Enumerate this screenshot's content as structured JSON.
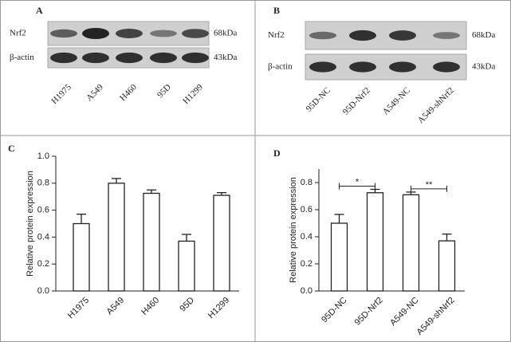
{
  "panels": [
    "A",
    "B",
    "C",
    "D"
  ],
  "blots": [
    {
      "proteins": [
        "Nrf2",
        "β-actin"
      ],
      "sizes": [
        "68kDa",
        "43kDa"
      ],
      "lanes": [
        "H1975",
        "A549",
        "H460",
        "95D",
        "H1299"
      ]
    },
    {
      "proteins": [
        "Nrf2",
        "β-actin"
      ],
      "sizes": [
        "68kDa",
        "43kDa"
      ],
      "lanes": [
        "95D-NC",
        "95D-Nrf2",
        "A549-NC",
        "A549-shNrf2"
      ]
    }
  ],
  "chart_data": [
    {
      "type": "bar",
      "y_label": "Relative protein expression",
      "categories": [
        "H1975",
        "A549",
        "H460",
        "95D",
        "H1299"
      ],
      "values": [
        0.5,
        0.8,
        0.725,
        0.37,
        0.71
      ],
      "errors": [
        0.07,
        0.035,
        0.025,
        0.05,
        0.02
      ],
      "color": "#ffffff",
      "ylim": [
        0,
        1
      ],
      "yticks": [
        {
          "value": 0,
          "label": "0.0"
        },
        0.2,
        0.4,
        0.6,
        0.8,
        {
          "value": 1,
          "label": "1.0"
        }
      ]
    },
    {
      "type": "bar",
      "y_label": "Relative protein expression",
      "categories": [
        "95D-NC",
        "95D-Nrf2",
        "A549-NC",
        "A549-shNrf2"
      ],
      "values": [
        0.5,
        0.725,
        0.71,
        0.37
      ],
      "errors": [
        0.065,
        0.025,
        0.02,
        0.05
      ],
      "color": "#ffffff",
      "ylim": [
        0,
        0.9
      ],
      "yticks": [
        {
          "value": 0,
          "label": "0.0"
        },
        0.2,
        0.4,
        0.6,
        0.8
      ],
      "annotations": [
        "*",
        "**"
      ]
    }
  ]
}
